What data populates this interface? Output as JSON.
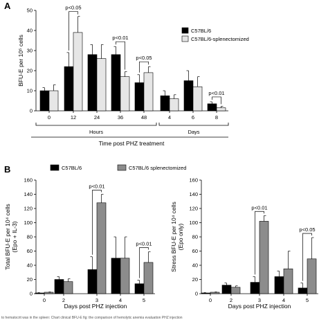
{
  "colors": {
    "black_bar": "#000000",
    "grey_bar": "#8c8c8c",
    "light_bar": "#e6e6e6",
    "axis": "#000000"
  },
  "chart_data": [
    {
      "panel": "A",
      "type": "bar",
      "ylabel": "BFU-E per 10⁵ cells",
      "xlabel": "Time post PHZ treatment",
      "ylim": [
        0,
        50
      ],
      "yticks": [
        "0",
        "10",
        "20",
        "30",
        "40",
        "50"
      ],
      "categories": [
        "0",
        "12",
        "24",
        "36",
        "48",
        "4",
        "6",
        "8"
      ],
      "groups": [
        {
          "label": "Hours",
          "categories": [
            "0",
            "12",
            "24",
            "36",
            "48"
          ]
        },
        {
          "label": "Days",
          "categories": [
            "4",
            "6",
            "8"
          ]
        }
      ],
      "legend_position": "top-right",
      "series": [
        {
          "name": "C57BL/6",
          "color": "#000000",
          "values": [
            10,
            22,
            28,
            28,
            14,
            7.5,
            15,
            3.5
          ],
          "errors": [
            1.5,
            7,
            5,
            4,
            4,
            2.5,
            5,
            1
          ]
        },
        {
          "name": "C57BL/6-splenectomized",
          "color": "#e6e6e6",
          "values": [
            10,
            39,
            26,
            17,
            19,
            6,
            12,
            1.5
          ],
          "errors": [
            3,
            8,
            7,
            2.5,
            3,
            2,
            5,
            0.8
          ]
        }
      ],
      "annotations": [
        {
          "text": "p<0.05",
          "category": "12"
        },
        {
          "text": "p<0.01",
          "category": "36"
        },
        {
          "text": "p<0.05",
          "category": "48"
        },
        {
          "text": "p<0.01",
          "category": "8"
        }
      ]
    },
    {
      "panel": "B",
      "type": "bar",
      "ylabel": [
        "Total BFU-E per 10⁴ cells",
        "(Epo + IL-3)"
      ],
      "xlabel": "Days post PHZ injection",
      "ylim": [
        0,
        160
      ],
      "yticks": [
        "0",
        "20",
        "40",
        "60",
        "80",
        "100",
        "120",
        "140",
        "160"
      ],
      "categories": [
        "0",
        "2",
        "3",
        "4",
        "5"
      ],
      "legend_position": "top",
      "series": [
        {
          "name": "C57BL/6",
          "color": "#000000",
          "values": [
            1,
            20,
            34,
            50,
            14
          ],
          "errors": [
            0.5,
            4,
            18,
            30,
            5
          ]
        },
        {
          "name": "C57BL/6 splenectomized",
          "color": "#8c8c8c",
          "values": [
            2,
            17,
            128,
            50,
            44
          ],
          "errors": [
            0.5,
            4,
            12,
            30,
            15
          ]
        }
      ],
      "annotations": [
        {
          "text": "p<0.01",
          "category": "3"
        },
        {
          "text": "p<0.01",
          "category": "5"
        }
      ]
    },
    {
      "panel": "B",
      "type": "bar",
      "ylabel": [
        "Stress BFU-E per 10⁴ cells",
        "(Epo only)"
      ],
      "xlabel": "Days post PHZ injection",
      "ylim": [
        0,
        160
      ],
      "yticks": [
        "0",
        "20",
        "40",
        "60",
        "80",
        "100",
        "120",
        "140",
        "160"
      ],
      "categories": [
        "0",
        "2",
        "3",
        "4",
        "5"
      ],
      "series": [
        {
          "name": "C57BL/6",
          "color": "#000000",
          "values": [
            1,
            12,
            16,
            24,
            8
          ],
          "errors": [
            0.5,
            3,
            8,
            8,
            7
          ]
        },
        {
          "name": "C57BL/6 splenectomized",
          "color": "#8c8c8c",
          "values": [
            2,
            9,
            102,
            35,
            49
          ],
          "errors": [
            0.5,
            2,
            8,
            25,
            30
          ]
        }
      ],
      "annotations": [
        {
          "text": "p<0.01",
          "category": "3"
        },
        {
          "text": "p<0.05",
          "category": "5"
        }
      ]
    }
  ],
  "footer_text": "to hematocrit was in the spleen: Chart clinical BFU-E fig: the comparison of hemolytic anemia evaluation PHZ injection"
}
